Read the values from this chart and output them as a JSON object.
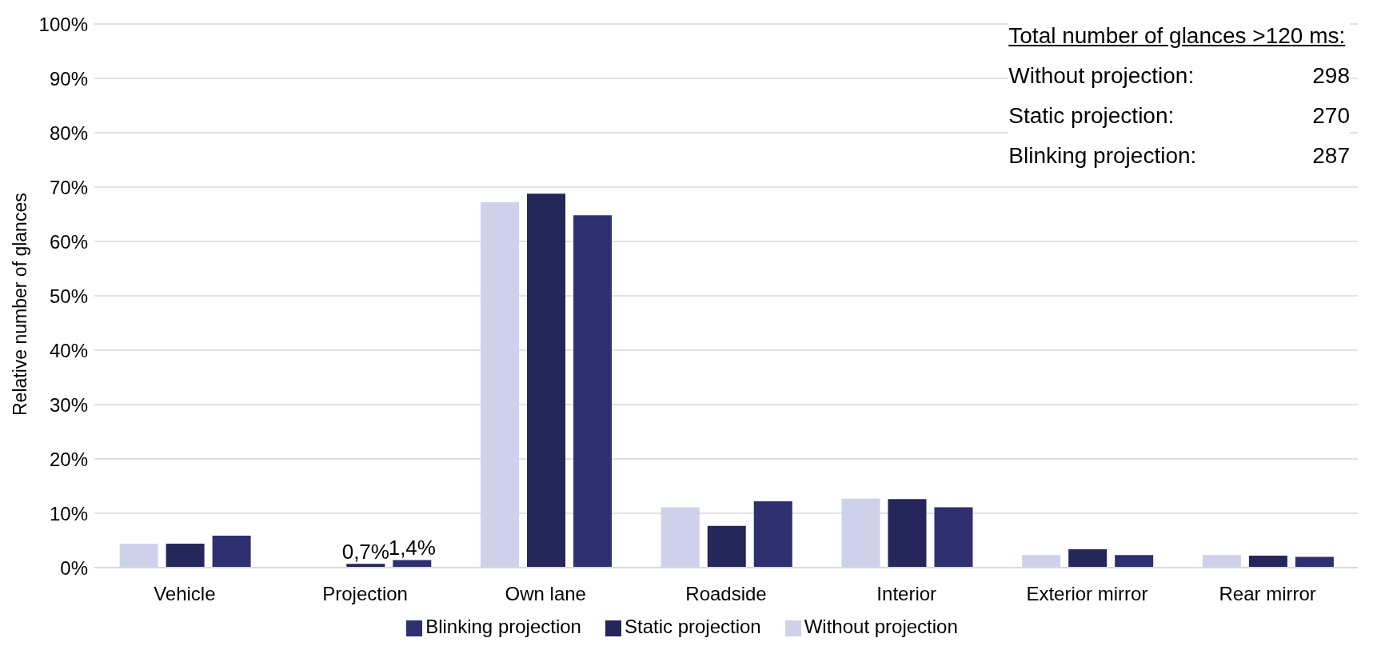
{
  "chart_data": {
    "type": "bar",
    "ylabel": "Relative number of glances",
    "categories": [
      "Vehicle",
      "Projection",
      "Own lane",
      "Roadside",
      "Interior",
      "Exterior mirror",
      "Rear mirror"
    ],
    "series": [
      {
        "name": "Without projection",
        "color": "#cfd0ea",
        "values": [
          4.4,
          0,
          67.2,
          11.1,
          12.7,
          2.3,
          2.3
        ]
      },
      {
        "name": "Static projection",
        "color": "#25275a",
        "values": [
          4.4,
          0.7,
          68.8,
          7.7,
          12.6,
          3.4,
          2.2
        ],
        "value_labels": [
          null,
          "0,7%",
          null,
          null,
          null,
          null,
          null
        ]
      },
      {
        "name": "Blinking projection",
        "color": "#2e3070",
        "values": [
          5.9,
          1.4,
          64.8,
          12.2,
          11.1,
          2.3,
          2.0
        ],
        "value_labels": [
          null,
          "1,4%",
          null,
          null,
          null,
          null,
          null
        ]
      }
    ],
    "ylim": [
      0,
      100
    ],
    "yticks": [
      {
        "value": 0,
        "label": "0%"
      },
      {
        "value": 10,
        "label": "10%"
      },
      {
        "value": 20,
        "label": "20%"
      },
      {
        "value": 30,
        "label": "30%"
      },
      {
        "value": 40,
        "label": "40%"
      },
      {
        "value": 50,
        "label": "50%"
      },
      {
        "value": 60,
        "label": "60%"
      },
      {
        "value": 70,
        "label": "70%"
      },
      {
        "value": 80,
        "label": "80%"
      },
      {
        "value": 90,
        "label": "90%"
      },
      {
        "value": 100,
        "label": "100%"
      }
    ],
    "grid": "y",
    "legend": "bottom",
    "annotations": [
      "Total number of glances >120 ms:",
      "Without projection:",
      "298",
      "Static projection:",
      "270",
      "Blinking projection:",
      "287"
    ]
  }
}
